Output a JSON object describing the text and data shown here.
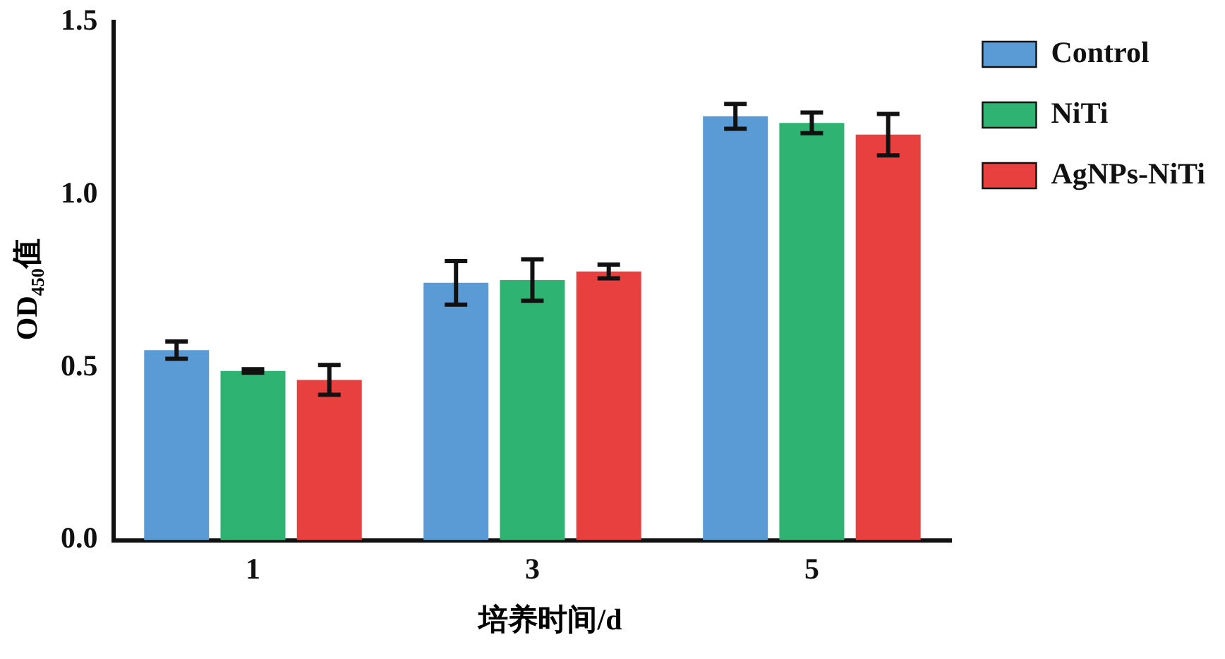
{
  "chart_data": {
    "type": "bar",
    "xlabel": "培养时间/d",
    "ylabel": "OD$_{450}$值",
    "categories": [
      "1",
      "3",
      "5"
    ],
    "series": [
      {
        "name": "Control",
        "color": "#5b9bd5",
        "values": [
          0.55,
          0.745,
          1.227
        ],
        "errors": [
          0.025,
          0.063,
          0.036
        ]
      },
      {
        "name": "NiTi",
        "color": "#2eb373",
        "values": [
          0.49,
          0.753,
          1.208
        ],
        "errors": [
          0.005,
          0.06,
          0.03
        ]
      },
      {
        "name": "AgNPs-NiTi",
        "color": "#e8403f",
        "values": [
          0.464,
          0.778,
          1.174
        ],
        "errors": [
          0.043,
          0.02,
          0.06
        ]
      }
    ],
    "ylim": [
      0,
      1.5
    ],
    "yticks": [
      {
        "value": 0,
        "label": "0.0"
      },
      0.5,
      {
        "value": 1,
        "label": "1.0"
      },
      1.5
    ],
    "grid": false,
    "legend": "top right"
  }
}
